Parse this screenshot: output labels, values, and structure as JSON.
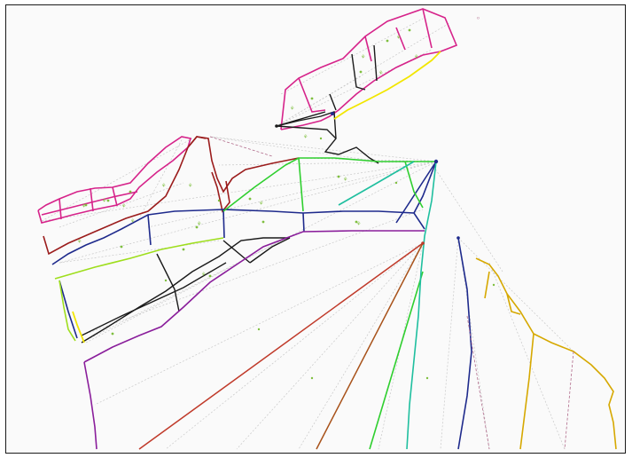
{
  "canvas": {
    "background": "#fafafa",
    "border_color": "#1a1a1a",
    "guide_line_color": "#c8c8c8",
    "marker_color": "#7fbf3f"
  },
  "boundary_colors": {
    "magenta": "#d6238a",
    "dark_red": "#9b1c1c",
    "navy": "#1e2a8c",
    "purple": "#8a1e9b",
    "green": "#2fcf2f",
    "lime": "#9ede1c",
    "black": "#1a1a1a",
    "teal": "#1fbf9f",
    "brown": "#a8521a",
    "red": "#c03a2a",
    "yellow": "#f2e600",
    "gold": "#d6a800",
    "mauve": "#b06a8a"
  },
  "cursor": {
    "icon": "crosshair-icon",
    "label": "⁰"
  }
}
